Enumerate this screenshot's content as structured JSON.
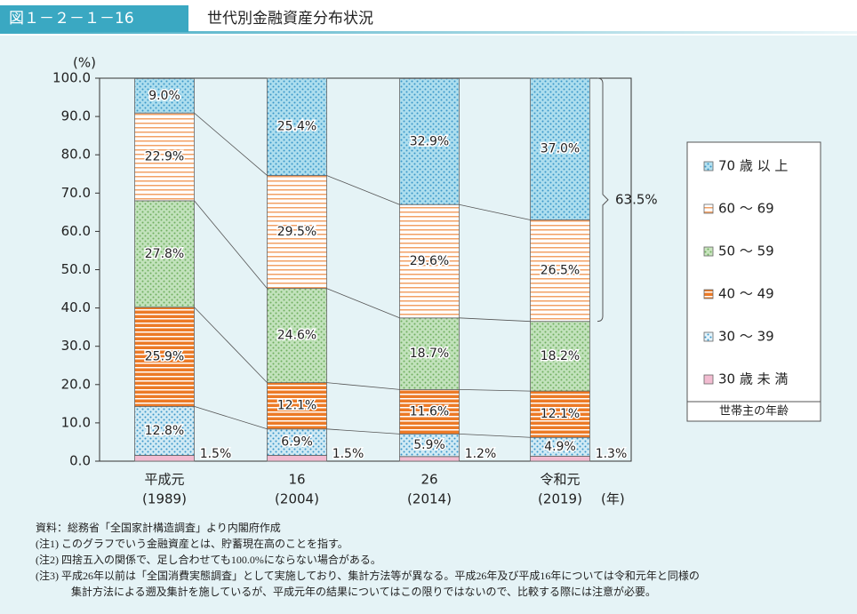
{
  "header": {
    "figure_no": "図１－２－１－16",
    "title": "世代別金融資産分布状況"
  },
  "chart_data": {
    "type": "stacked_bar",
    "y_unit": "(%)",
    "x_unit": "(年)",
    "categories": [
      [
        "平成元",
        "(1989)"
      ],
      [
        "16",
        "(2004)"
      ],
      [
        "26",
        "(2014)"
      ],
      [
        "令和元",
        "(2019)"
      ]
    ],
    "ylim": [
      0,
      100
    ],
    "yticks": [
      {
        "value": 0,
        "label": "0.0"
      },
      {
        "value": 10,
        "label": "10.0"
      },
      {
        "value": 20,
        "label": "20.0"
      },
      {
        "value": 30,
        "label": "30.0"
      },
      {
        "value": 40,
        "label": "40.0"
      },
      {
        "value": 50,
        "label": "50.0"
      },
      {
        "value": 60,
        "label": "60.0"
      },
      {
        "value": 70,
        "label": "70.0"
      },
      {
        "value": 80,
        "label": "80.0"
      },
      {
        "value": 90,
        "label": "90.0"
      },
      {
        "value": 100,
        "label": "100.0"
      }
    ],
    "series": [
      {
        "name": "30 歳 未 満",
        "color": "#f2bcd1",
        "values": [
          1.5,
          1.5,
          1.2,
          1.3
        ],
        "value_labels": [
          "1.5%",
          "1.5%",
          "1.2%",
          "1.3%"
        ]
      },
      {
        "name": "30 ～ 39",
        "color": "#7cc6ea",
        "values": [
          12.8,
          6.9,
          5.9,
          4.9
        ],
        "value_labels": [
          "12.8%",
          "6.9%",
          "5.9%",
          "4.9%"
        ]
      },
      {
        "name": "40 ～ 49",
        "color": "#ec7a26",
        "values": [
          25.9,
          12.1,
          11.6,
          12.1
        ],
        "value_labels": [
          "25.9%",
          "12.1%",
          "11.6%",
          "12.1%"
        ]
      },
      {
        "name": "50 ～ 59",
        "color": "#b7dca8",
        "values": [
          27.8,
          24.6,
          18.7,
          18.2
        ],
        "value_labels": [
          "27.8%",
          "24.6%",
          "18.7%",
          "18.2%"
        ]
      },
      {
        "name": "60 ～ 69",
        "color": "#f2a064",
        "values": [
          22.9,
          29.5,
          29.6,
          26.5
        ],
        "value_labels": [
          "22.9%",
          "29.5%",
          "29.6%",
          "26.5%"
        ]
      },
      {
        "name": "70 歳 以 上",
        "color": "#9ad6ea",
        "values": [
          9.0,
          25.4,
          32.9,
          37.0
        ],
        "value_labels": [
          "9.0%",
          "25.4%",
          "32.9%",
          "37.0%"
        ]
      }
    ],
    "bracket": {
      "value": 63.5,
      "label": "63.5%"
    },
    "legend_title": "世帯主の年齢"
  },
  "notes": [
    "資料：総務省「全国家計構造調査」より内閣府作成",
    "(注1) このグラフでいう金融資産とは、貯蓄現在高のことを指す。",
    "(注2) 四捨五入の関係で、足し合わせても100.0%にならない場合がある。",
    "(注3) 平成26年以前は「全国消費実態調査」として実施しており、集計方法等が異なる。平成26年及び平成16年については令和元年と同様の",
    "集計方法による遡及集計を施しているが、平成元年の結果についてはこの限りではないので、比較する際には注意が必要。"
  ]
}
